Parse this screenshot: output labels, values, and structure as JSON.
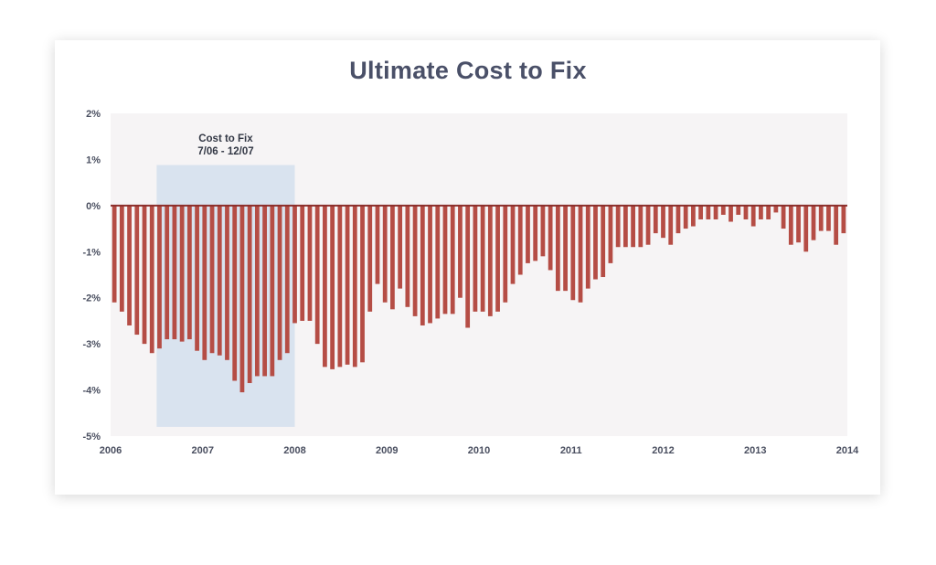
{
  "chart_data": {
    "type": "bar",
    "title": "Ultimate Cost to Fix",
    "xlabel": "",
    "ylabel": "",
    "ylim": [
      -5,
      2
    ],
    "y_ticks": [
      "2%",
      "1%",
      "0%",
      "-1%",
      "-2%",
      "-3%",
      "-4%",
      "-5%"
    ],
    "y_tick_values": [
      2,
      1,
      0,
      -1,
      -2,
      -3,
      -4,
      -5
    ],
    "x_ticks": [
      "2006",
      "2007",
      "2008",
      "2009",
      "2010",
      "2011",
      "2012",
      "2013",
      "2014"
    ],
    "x_tick_values": [
      2006,
      2007,
      2008,
      2009,
      2010,
      2011,
      2012,
      2013,
      2014
    ],
    "xlim": [
      2006,
      2014
    ],
    "frequency": "monthly",
    "start": "2006-01",
    "values": [
      -2.1,
      -2.3,
      -2.6,
      -2.8,
      -3.0,
      -3.2,
      -3.1,
      -2.9,
      -2.9,
      -2.95,
      -2.9,
      -3.15,
      -3.35,
      -3.2,
      -3.25,
      -3.35,
      -3.8,
      -4.05,
      -3.85,
      -3.7,
      -3.7,
      -3.7,
      -3.35,
      -3.2,
      -2.55,
      -2.5,
      -2.5,
      -3.0,
      -3.5,
      -3.55,
      -3.5,
      -3.45,
      -3.5,
      -3.4,
      -2.3,
      -1.7,
      -2.1,
      -2.25,
      -1.8,
      -2.2,
      -2.4,
      -2.6,
      -2.55,
      -2.45,
      -2.35,
      -2.35,
      -2.0,
      -2.65,
      -2.3,
      -2.3,
      -2.4,
      -2.3,
      -2.1,
      -1.7,
      -1.5,
      -1.25,
      -1.2,
      -1.1,
      -1.4,
      -1.85,
      -1.85,
      -2.05,
      -2.1,
      -1.8,
      -1.6,
      -1.55,
      -1.25,
      -0.9,
      -0.9,
      -0.9,
      -0.9,
      -0.85,
      -0.6,
      -0.7,
      -0.85,
      -0.6,
      -0.5,
      -0.45,
      -0.3,
      -0.3,
      -0.3,
      -0.2,
      -0.35,
      -0.2,
      -0.3,
      -0.45,
      -0.3,
      -0.3,
      -0.15,
      -0.5,
      -0.85,
      -0.8,
      -1.0,
      -0.75,
      -0.55,
      -0.55,
      -0.85,
      -0.6
    ],
    "highlight": {
      "label_line1": "Cost to Fix",
      "label_line2": "7/06 - 12/07",
      "x_start": 2006.5,
      "x_end": 2008.0
    },
    "grid": false,
    "legend": "none",
    "colors": {
      "bar": "#b54d45",
      "zero_line": "#8c2f2b",
      "plot_bg": "#f6f4f5",
      "highlight_bg": "#d9e3ef",
      "title": "#4a5068",
      "tick_text": "#4a4f60"
    }
  }
}
